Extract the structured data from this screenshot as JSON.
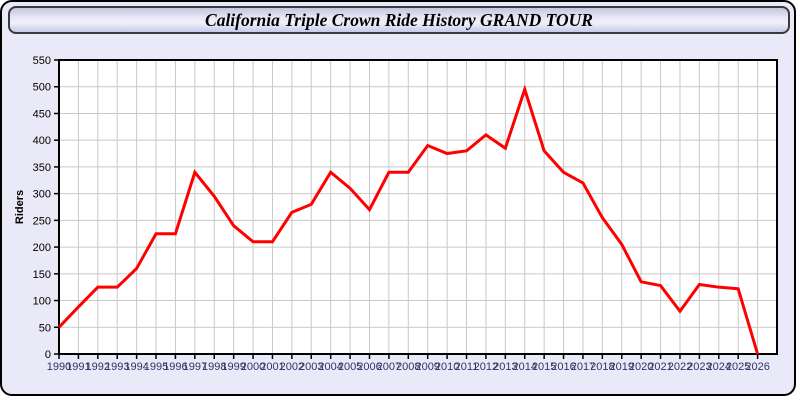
{
  "window": {
    "title": "California Triple Crown Ride History GRAND TOUR",
    "body_color": "#eae9f7"
  },
  "chart_data": {
    "type": "line",
    "title": "California Triple Crown Ride History GRAND TOUR",
    "xlabel": "",
    "ylabel": "Riders",
    "x": [
      1990,
      1991,
      1992,
      1993,
      1994,
      1995,
      1996,
      1997,
      1998,
      1999,
      2000,
      2001,
      2002,
      2003,
      2004,
      2005,
      2006,
      2007,
      2008,
      2009,
      2010,
      2011,
      2012,
      2013,
      2014,
      2015,
      2016,
      2017,
      2018,
      2019,
      2020,
      2021,
      2022,
      2023,
      2024,
      2025,
      2026
    ],
    "series": [
      {
        "name": "Riders",
        "color": "#ff0000",
        "values": [
          50,
          88,
          125,
          125,
          160,
          225,
          225,
          340,
          295,
          240,
          210,
          210,
          265,
          280,
          340,
          310,
          270,
          340,
          340,
          390,
          375,
          380,
          410,
          385,
          495,
          380,
          340,
          320,
          255,
          205,
          135,
          128,
          80,
          130,
          125,
          122,
          0
        ]
      }
    ],
    "ylim": [
      0,
      550
    ],
    "ytick_step": 50,
    "xlim": [
      1990,
      2027
    ],
    "grid": true,
    "legend": "none",
    "plot_bg": "#ffffff",
    "plot_border_color": "#000000",
    "grid_color": "#c9c9c9",
    "x_tick_label_color": "#333366",
    "y_tick_label_color": "#000000",
    "axis_title_color": "#000000"
  }
}
